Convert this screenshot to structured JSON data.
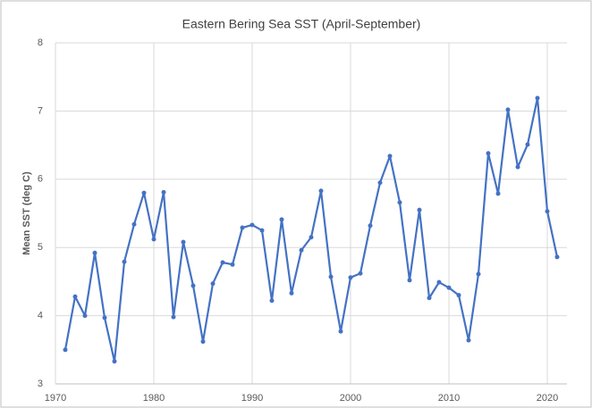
{
  "chart_data": {
    "type": "line",
    "title": "Eastern Bering Sea SST (April-September)",
    "y_label": "Mean SST (deg C)",
    "x": [
      1971,
      1972,
      1973,
      1974,
      1975,
      1976,
      1977,
      1978,
      1979,
      1980,
      1981,
      1982,
      1983,
      1984,
      1985,
      1986,
      1987,
      1988,
      1989,
      1990,
      1991,
      1992,
      1993,
      1994,
      1995,
      1996,
      1997,
      1998,
      1999,
      2000,
      2001,
      2002,
      2003,
      2004,
      2005,
      2006,
      2007,
      2008,
      2009,
      2010,
      2011,
      2012,
      2013,
      2014,
      2015,
      2016,
      2017,
      2018,
      2019,
      2020,
      2021
    ],
    "series": [
      {
        "name": "Mean SST",
        "color": "#4472c4",
        "values": [
          3.5,
          4.28,
          4.0,
          4.92,
          3.97,
          3.33,
          4.79,
          5.34,
          5.8,
          5.12,
          5.81,
          3.98,
          5.08,
          4.44,
          3.62,
          4.47,
          4.78,
          4.75,
          5.29,
          5.33,
          5.25,
          4.22,
          5.41,
          4.33,
          4.96,
          5.15,
          5.83,
          4.57,
          3.77,
          4.56,
          4.62,
          5.32,
          5.95,
          6.34,
          5.66,
          4.52,
          5.55,
          4.26,
          4.49,
          4.41,
          4.3,
          3.64,
          4.61,
          6.38,
          5.79,
          7.02,
          6.18,
          6.51,
          7.19,
          5.53,
          4.86
        ]
      }
    ],
    "xlim": [
      1970,
      2022
    ],
    "xticks": [
      1970,
      1980,
      1990,
      2000,
      2010,
      2020
    ],
    "ylim": [
      3,
      8
    ],
    "yticks": [
      3,
      4,
      5,
      6,
      7,
      8
    ],
    "grid": true
  }
}
